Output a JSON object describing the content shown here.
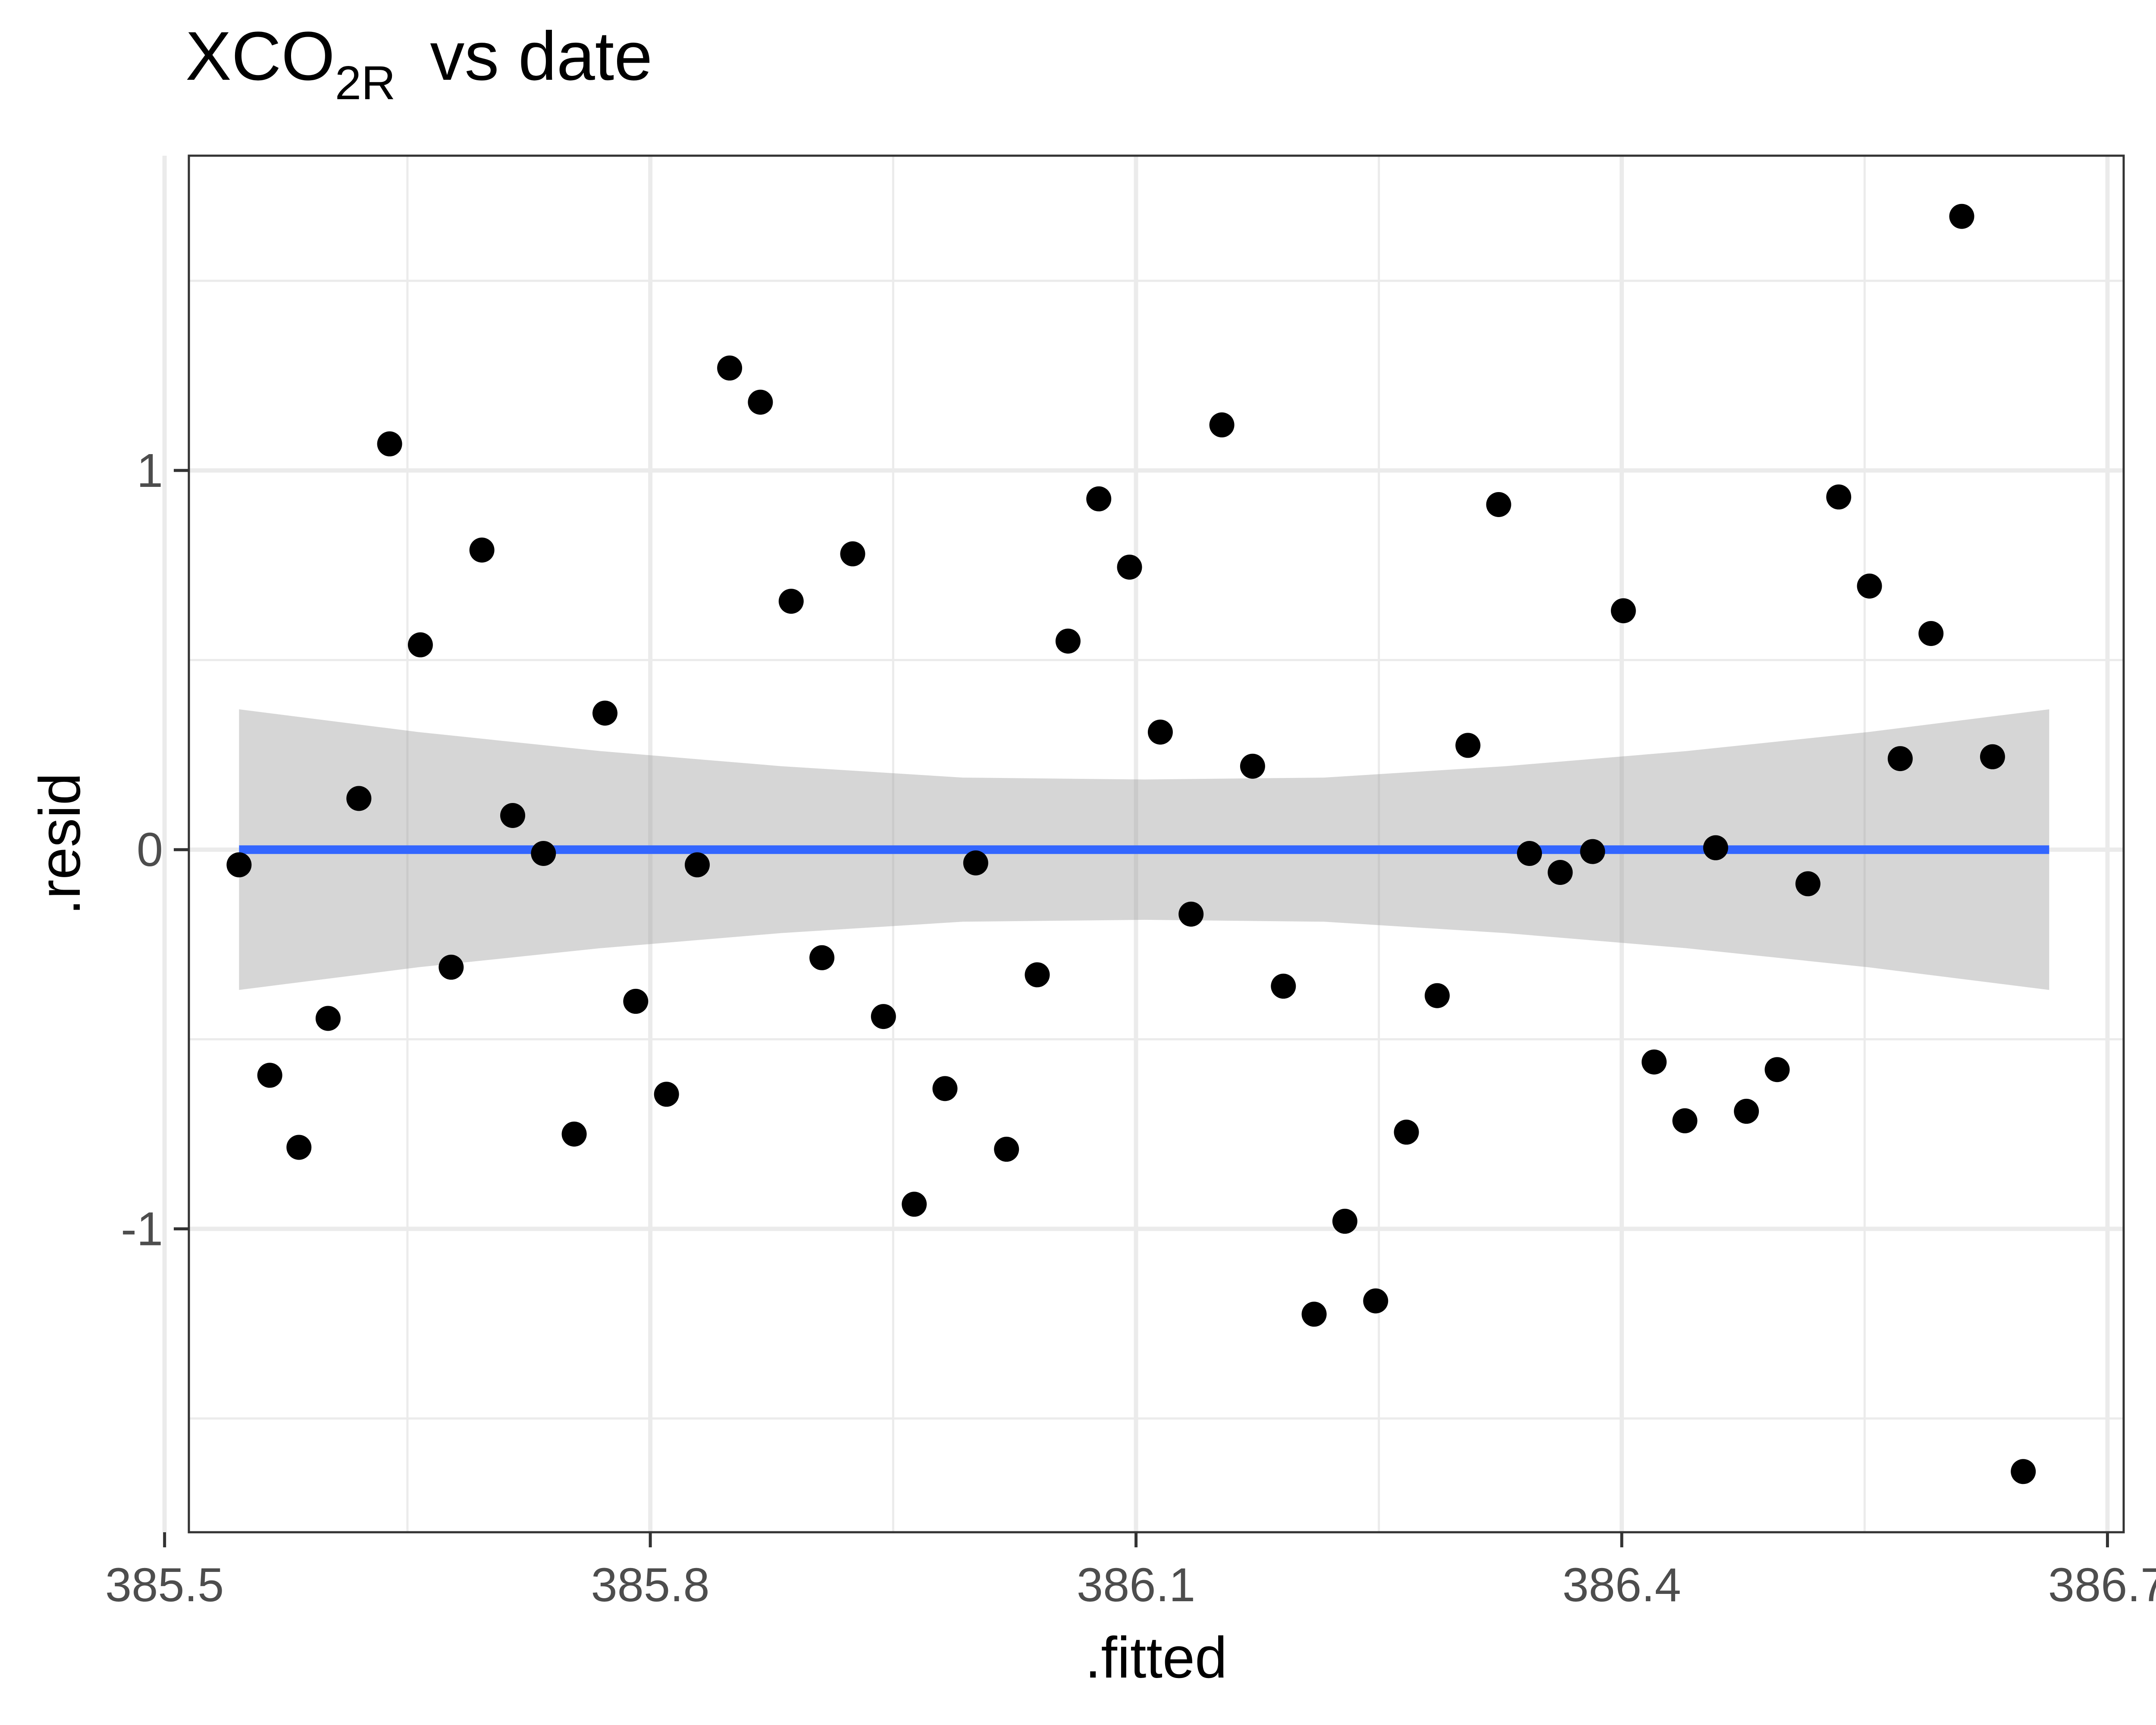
{
  "chart_data": {
    "type": "scatter",
    "title": {
      "main": "XCO",
      "subscript": "2R",
      "rest": "vs date"
    },
    "xlabel": ".fitted",
    "ylabel": ".resid",
    "xlim": [
      385.515,
      386.71
    ],
    "ylim": [
      -1.8,
      1.83
    ],
    "x_ticks": [
      {
        "value": 385.5,
        "label": "385.5"
      },
      {
        "value": 385.8,
        "label": "385.8"
      },
      {
        "value": 386.1,
        "label": "386.1"
      },
      {
        "value": 386.4,
        "label": "386.4"
      },
      {
        "value": 386.7,
        "label": "386.7"
      }
    ],
    "y_ticks": [
      {
        "value": -1,
        "label": "-1"
      },
      {
        "value": 0,
        "label": "0"
      },
      {
        "value": 1,
        "label": "1"
      }
    ],
    "grid": true,
    "x_minor_ticks": [
      385.65,
      385.95,
      386.25,
      386.55
    ],
    "y_minor_ticks": [
      -1.5,
      -0.5,
      0.5,
      1.5
    ],
    "fit_line": {
      "x": [
        385.546,
        386.664
      ],
      "y": [
        0,
        0
      ],
      "color": "#3366FF"
    },
    "confidence_band": {
      "x": [
        385.546,
        385.657,
        385.769,
        385.881,
        385.993,
        386.105,
        386.216,
        386.328,
        386.44,
        386.552,
        386.664
      ],
      "upper": [
        0.37,
        0.31,
        0.26,
        0.22,
        0.19,
        0.185,
        0.19,
        0.22,
        0.26,
        0.31,
        0.37
      ],
      "lower": [
        -0.37,
        -0.31,
        -0.26,
        -0.22,
        -0.19,
        -0.185,
        -0.19,
        -0.22,
        -0.26,
        -0.31,
        -0.37
      ],
      "color": "#999999"
    },
    "point_color": "#000000",
    "points": [
      {
        "x": 385.546,
        "y": -0.04
      },
      {
        "x": 385.565,
        "y": -0.595
      },
      {
        "x": 385.583,
        "y": -0.785
      },
      {
        "x": 385.601,
        "y": -0.445
      },
      {
        "x": 385.62,
        "y": 0.135
      },
      {
        "x": 385.639,
        "y": 1.07
      },
      {
        "x": 385.658,
        "y": 0.54
      },
      {
        "x": 385.677,
        "y": -0.31
      },
      {
        "x": 385.696,
        "y": 0.79
      },
      {
        "x": 385.715,
        "y": 0.09
      },
      {
        "x": 385.734,
        "y": -0.01
      },
      {
        "x": 385.753,
        "y": -0.75
      },
      {
        "x": 385.772,
        "y": 0.36
      },
      {
        "x": 385.791,
        "y": -0.4
      },
      {
        "x": 385.81,
        "y": -0.645
      },
      {
        "x": 385.829,
        "y": -0.04
      },
      {
        "x": 385.849,
        "y": 1.27
      },
      {
        "x": 385.868,
        "y": 1.18
      },
      {
        "x": 385.887,
        "y": 0.655
      },
      {
        "x": 385.906,
        "y": -0.285
      },
      {
        "x": 385.925,
        "y": 0.78
      },
      {
        "x": 385.944,
        "y": -0.44
      },
      {
        "x": 385.963,
        "y": -0.935
      },
      {
        "x": 385.982,
        "y": -0.63
      },
      {
        "x": 386.001,
        "y": -0.035
      },
      {
        "x": 386.02,
        "y": -0.79
      },
      {
        "x": 386.039,
        "y": -0.33
      },
      {
        "x": 386.058,
        "y": 0.55
      },
      {
        "x": 386.077,
        "y": 0.925
      },
      {
        "x": 386.096,
        "y": 0.745
      },
      {
        "x": 386.115,
        "y": 0.31
      },
      {
        "x": 386.134,
        "y": -0.17
      },
      {
        "x": 386.153,
        "y": 1.12
      },
      {
        "x": 386.172,
        "y": 0.22
      },
      {
        "x": 386.191,
        "y": -0.36
      },
      {
        "x": 386.21,
        "y": -1.225
      },
      {
        "x": 386.229,
        "y": -0.98
      },
      {
        "x": 386.248,
        "y": -1.19
      },
      {
        "x": 386.267,
        "y": -0.745
      },
      {
        "x": 386.286,
        "y": -0.385
      },
      {
        "x": 386.305,
        "y": 0.275
      },
      {
        "x": 386.324,
        "y": 0.91
      },
      {
        "x": 386.343,
        "y": -0.01
      },
      {
        "x": 386.362,
        "y": -0.06
      },
      {
        "x": 386.382,
        "y": -0.005
      },
      {
        "x": 386.401,
        "y": 0.63
      },
      {
        "x": 386.42,
        "y": -0.56
      },
      {
        "x": 386.439,
        "y": -0.715
      },
      {
        "x": 386.458,
        "y": 0.005
      },
      {
        "x": 386.477,
        "y": -0.69
      },
      {
        "x": 386.496,
        "y": -0.58
      },
      {
        "x": 386.515,
        "y": -0.09
      },
      {
        "x": 386.534,
        "y": 0.93
      },
      {
        "x": 386.553,
        "y": 0.695
      },
      {
        "x": 386.572,
        "y": 0.24
      },
      {
        "x": 386.591,
        "y": 0.57
      },
      {
        "x": 386.61,
        "y": 1.67
      },
      {
        "x": 386.629,
        "y": 0.245
      },
      {
        "x": 386.648,
        "y": -1.64
      }
    ]
  }
}
